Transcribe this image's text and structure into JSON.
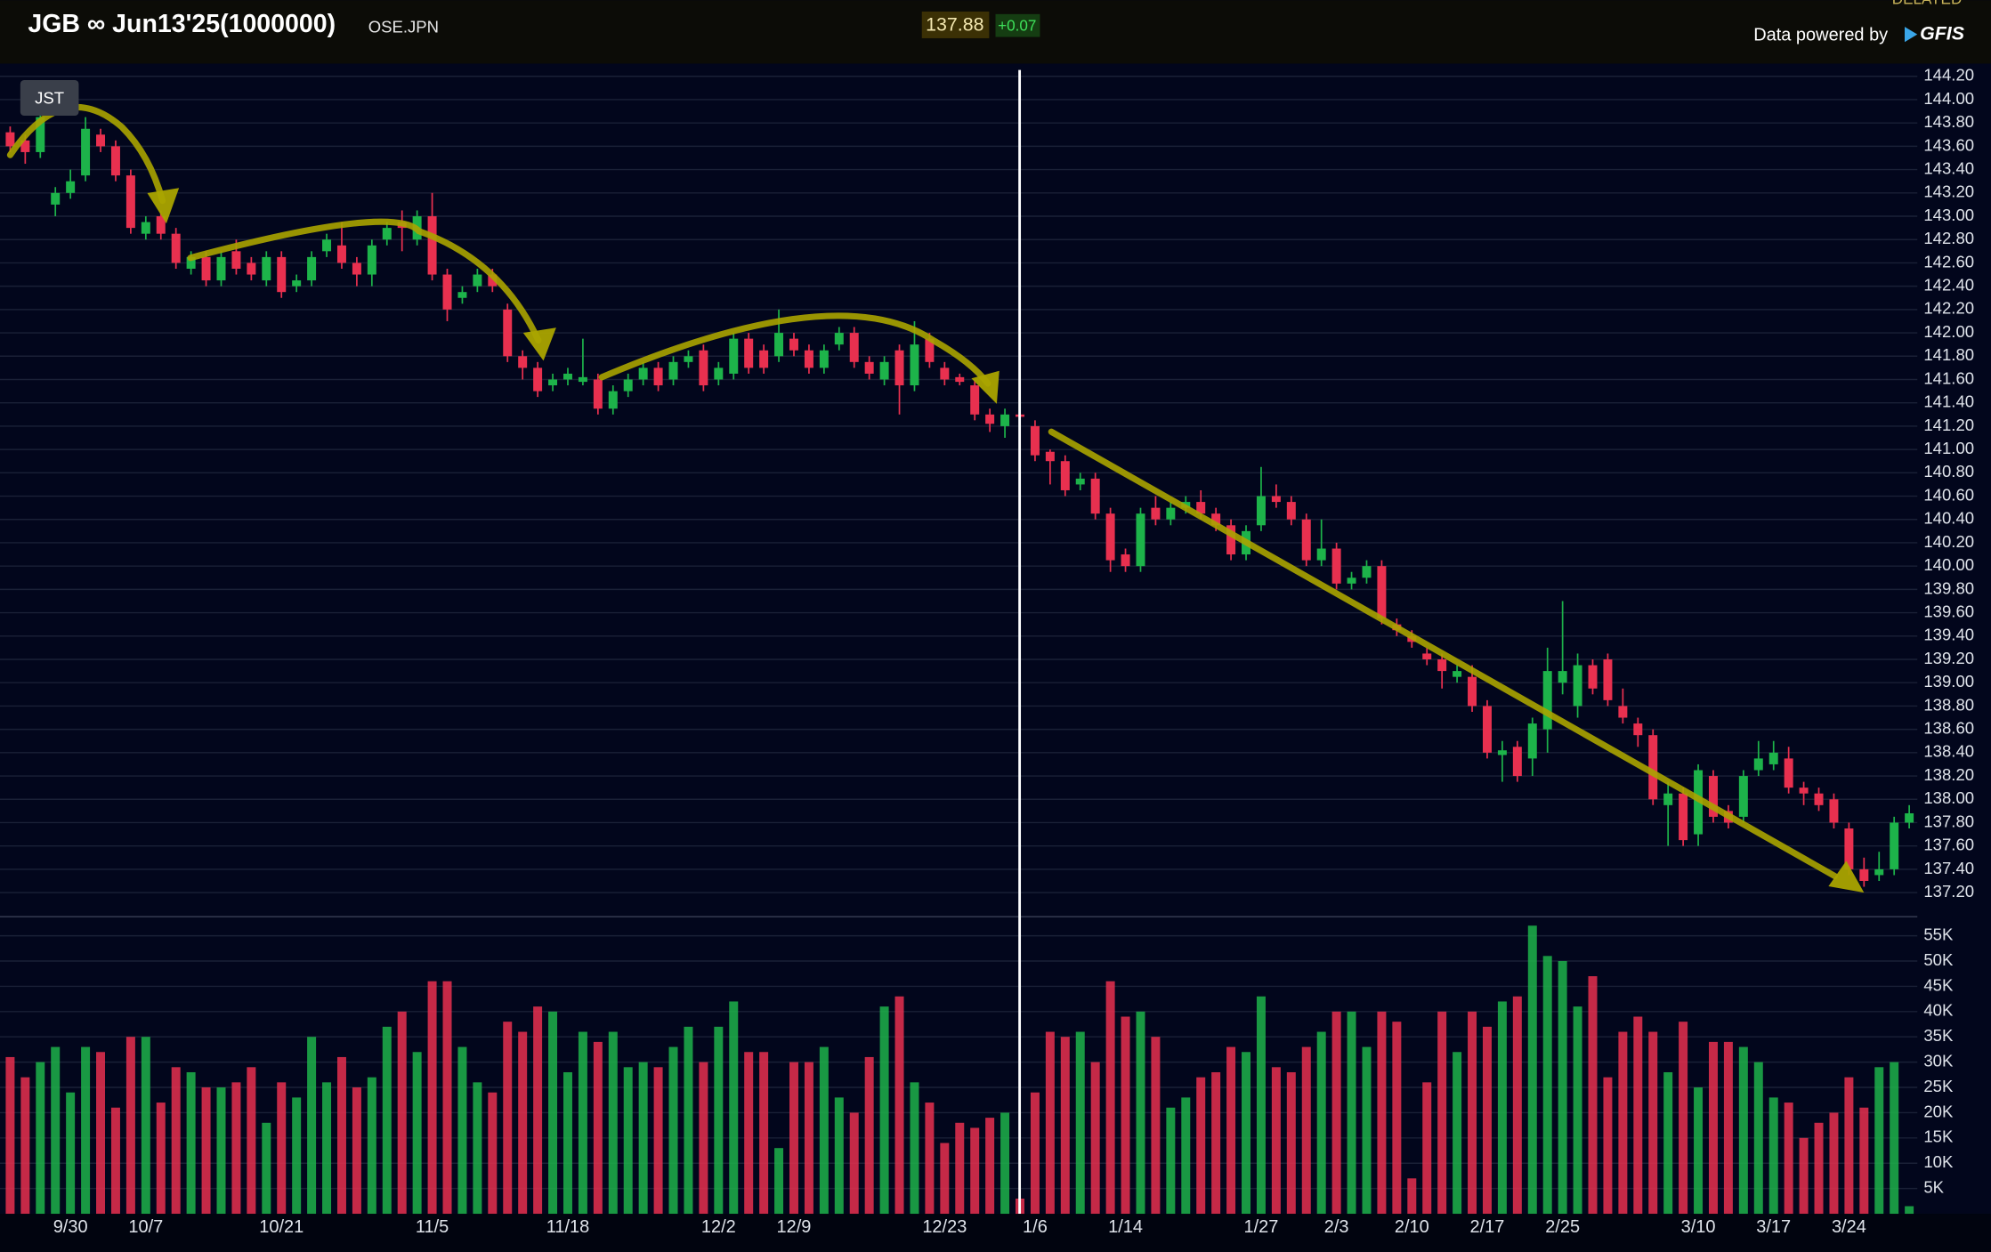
{
  "chart_data": {
    "type": "candlestick",
    "title": "JGB ∞ Jun13'25(1000000)",
    "exchange": "OSE.JPN",
    "last_price": "137.88",
    "change": "+0.07",
    "source_label": "Data powered by",
    "source_brand": "GFIS",
    "status": "DELAYED",
    "timezone": "JST",
    "up_color": "#1db34a",
    "down_color": "#e8304f",
    "grid": true,
    "categories": [
      null,
      null,
      null,
      null,
      "9/30",
      null,
      null,
      null,
      null,
      "10/7",
      null,
      null,
      null,
      null,
      null,
      null,
      null,
      null,
      "10/21",
      null,
      null,
      null,
      null,
      null,
      null,
      null,
      null,
      null,
      "11/5",
      null,
      null,
      null,
      null,
      null,
      null,
      null,
      null,
      "11/18",
      null,
      null,
      null,
      null,
      null,
      null,
      null,
      null,
      null,
      "12/2",
      null,
      null,
      null,
      null,
      "12/9",
      null,
      null,
      null,
      null,
      null,
      null,
      null,
      null,
      null,
      "12/23",
      null,
      null,
      null,
      null,
      null,
      "1/6",
      null,
      null,
      null,
      null,
      null,
      "1/14",
      null,
      null,
      null,
      null,
      null,
      null,
      null,
      null,
      "1/27",
      null,
      null,
      null,
      null,
      "2/3",
      null,
      null,
      null,
      null,
      "2/10",
      null,
      null,
      null,
      null,
      "2/17",
      null,
      null,
      null,
      null,
      "2/25",
      null,
      null,
      null,
      null,
      null,
      null,
      null,
      null,
      "3/10",
      null,
      null,
      null,
      null,
      "3/17",
      null,
      null,
      null,
      null,
      "3/24",
      null,
      null,
      null,
      null
    ],
    "open": [
      143.72,
      143.65,
      143.55,
      143.1,
      143.2,
      143.35,
      143.7,
      143.6,
      143.35,
      142.85,
      143.0,
      142.85,
      142.55,
      142.65,
      142.45,
      142.7,
      142.6,
      142.45,
      142.65,
      142.4,
      142.45,
      142.7,
      142.75,
      142.6,
      142.5,
      142.8,
      142.95,
      142.8,
      143.0,
      142.5,
      142.3,
      142.4,
      142.5,
      142.2,
      141.8,
      141.7,
      141.55,
      141.6,
      141.58,
      141.6,
      141.35,
      141.5,
      141.6,
      141.7,
      141.6,
      141.75,
      141.85,
      141.6,
      141.65,
      141.95,
      141.85,
      141.8,
      141.95,
      141.85,
      141.7,
      141.9,
      142.0,
      141.75,
      141.6,
      141.85,
      141.55,
      141.95,
      141.7,
      141.62,
      141.55,
      141.3,
      141.2,
      141.3,
      141.2,
      140.98,
      140.9,
      140.7,
      140.75,
      140.45,
      140.1,
      140.0,
      140.5,
      140.4,
      140.5,
      140.55,
      140.45,
      140.35,
      140.1,
      140.35,
      140.6,
      140.55,
      140.4,
      140.05,
      140.15,
      139.85,
      139.9,
      140.0,
      139.5,
      139.4,
      139.25,
      139.2,
      139.05,
      139.05,
      138.8,
      138.38,
      138.45,
      138.35,
      138.6,
      139.0,
      138.8,
      139.15,
      139.2,
      138.8,
      138.65,
      138.55,
      137.95,
      138.05,
      137.7,
      138.2,
      137.9,
      137.85,
      138.25,
      138.3,
      138.35,
      138.1,
      138.05,
      138.0,
      137.75,
      137.4,
      137.35,
      137.4,
      137.8
    ],
    "high": [
      143.77,
      143.7,
      143.9,
      143.25,
      143.4,
      143.85,
      143.75,
      143.65,
      143.4,
      143.0,
      143.05,
      142.9,
      142.7,
      142.7,
      142.7,
      142.8,
      142.65,
      142.7,
      142.7,
      142.5,
      142.7,
      142.85,
      142.95,
      142.65,
      142.8,
      142.95,
      143.05,
      143.05,
      143.2,
      142.55,
      142.4,
      142.55,
      142.55,
      142.25,
      141.85,
      141.75,
      141.65,
      141.7,
      141.95,
      141.65,
      141.55,
      141.65,
      141.75,
      141.75,
      141.8,
      141.85,
      141.9,
      141.75,
      142.0,
      142.0,
      141.9,
      142.2,
      142.0,
      141.9,
      141.9,
      142.05,
      142.05,
      141.8,
      141.8,
      141.9,
      142.1,
      142.0,
      141.75,
      141.65,
      141.6,
      141.35,
      141.35,
      141.32,
      141.25,
      141.0,
      140.95,
      140.8,
      140.8,
      140.5,
      140.15,
      140.5,
      140.6,
      140.55,
      140.6,
      140.65,
      140.5,
      140.4,
      140.35,
      140.85,
      140.7,
      140.6,
      140.45,
      140.4,
      140.2,
      139.95,
      140.05,
      140.05,
      139.55,
      139.45,
      139.3,
      139.25,
      139.15,
      139.15,
      138.85,
      138.5,
      138.5,
      138.7,
      139.3,
      139.7,
      139.25,
      139.2,
      139.25,
      138.95,
      138.7,
      138.6,
      138.15,
      138.1,
      138.3,
      138.25,
      137.95,
      138.25,
      138.5,
      138.5,
      138.45,
      138.15,
      138.1,
      138.05,
      137.8,
      137.5,
      137.55,
      137.85,
      137.95
    ],
    "low": [
      143.55,
      143.45,
      143.5,
      143.0,
      143.15,
      143.3,
      143.55,
      143.3,
      142.85,
      142.8,
      142.8,
      142.55,
      142.5,
      142.4,
      142.4,
      142.5,
      142.45,
      142.4,
      142.3,
      142.35,
      142.4,
      142.65,
      142.55,
      142.4,
      142.4,
      142.75,
      142.7,
      142.75,
      142.45,
      142.1,
      142.25,
      142.35,
      142.35,
      141.75,
      141.6,
      141.45,
      141.5,
      141.55,
      141.55,
      141.3,
      141.3,
      141.45,
      141.55,
      141.5,
      141.55,
      141.7,
      141.5,
      141.55,
      141.6,
      141.65,
      141.65,
      141.75,
      141.8,
      141.65,
      141.65,
      141.85,
      141.7,
      141.6,
      141.55,
      141.3,
      141.5,
      141.7,
      141.55,
      141.55,
      141.25,
      141.15,
      141.1,
      141.25,
      140.9,
      140.7,
      140.6,
      140.65,
      140.4,
      139.95,
      139.95,
      139.95,
      140.35,
      140.35,
      140.45,
      140.4,
      140.3,
      140.05,
      140.05,
      140.3,
      140.5,
      140.35,
      140.0,
      140.0,
      139.8,
      139.8,
      139.85,
      139.5,
      139.4,
      139.3,
      139.15,
      138.95,
      139.0,
      138.75,
      138.35,
      138.15,
      138.15,
      138.2,
      138.4,
      138.9,
      138.7,
      138.9,
      138.8,
      138.65,
      138.45,
      137.95,
      137.6,
      137.6,
      137.6,
      137.8,
      137.75,
      137.8,
      138.2,
      138.25,
      138.05,
      137.95,
      137.9,
      137.75,
      137.35,
      137.25,
      137.3,
      137.35,
      137.75
    ],
    "close": [
      143.6,
      143.55,
      143.85,
      143.2,
      143.3,
      143.75,
      143.6,
      143.35,
      142.9,
      142.95,
      142.85,
      142.6,
      142.65,
      142.45,
      142.65,
      142.55,
      142.5,
      142.65,
      142.35,
      142.45,
      142.65,
      142.8,
      142.6,
      142.5,
      142.75,
      142.9,
      142.9,
      143.0,
      142.5,
      142.2,
      142.35,
      142.5,
      142.4,
      141.8,
      141.7,
      141.5,
      141.6,
      141.65,
      141.62,
      141.35,
      141.5,
      141.6,
      141.7,
      141.55,
      141.75,
      141.8,
      141.55,
      141.7,
      141.95,
      141.7,
      141.7,
      142.0,
      141.85,
      141.7,
      141.85,
      142.0,
      141.75,
      141.65,
      141.75,
      141.55,
      141.9,
      141.75,
      141.6,
      141.58,
      141.3,
      141.22,
      141.3,
      141.28,
      140.95,
      140.9,
      140.65,
      140.75,
      140.45,
      140.05,
      140.0,
      140.45,
      140.4,
      140.5,
      140.55,
      140.45,
      140.35,
      140.1,
      140.3,
      140.6,
      140.55,
      140.4,
      140.05,
      140.15,
      139.85,
      139.9,
      140.0,
      139.55,
      139.45,
      139.35,
      139.2,
      139.1,
      139.1,
      138.8,
      138.4,
      138.42,
      138.2,
      138.65,
      139.1,
      139.1,
      139.15,
      138.95,
      138.85,
      138.7,
      138.55,
      138.0,
      138.05,
      137.65,
      138.25,
      137.85,
      137.8,
      138.2,
      138.35,
      138.4,
      138.1,
      138.05,
      137.95,
      137.8,
      137.4,
      137.3,
      137.4,
      137.8,
      137.88
    ],
    "volume": [
      31000,
      27000,
      30000,
      33000,
      24000,
      33000,
      32000,
      21000,
      35000,
      35000,
      22000,
      29000,
      28000,
      25000,
      25000,
      26000,
      29000,
      18000,
      26000,
      23000,
      35000,
      26000,
      31000,
      25000,
      27000,
      37000,
      40000,
      32000,
      46000,
      46000,
      33000,
      26000,
      24000,
      38000,
      36000,
      41000,
      40000,
      28000,
      36000,
      34000,
      36000,
      29000,
      30000,
      29000,
      33000,
      37000,
      30000,
      37000,
      42000,
      32000,
      32000,
      13000,
      30000,
      30000,
      33000,
      23000,
      20000,
      31000,
      41000,
      43000,
      26000,
      22000,
      14000,
      18000,
      17000,
      19000,
      20000,
      3000,
      24000,
      36000,
      35000,
      36000,
      30000,
      46000,
      39000,
      40000,
      35000,
      21000,
      23000,
      27000,
      28000,
      33000,
      32000,
      43000,
      29000,
      28000,
      33000,
      36000,
      40000,
      40000,
      33000,
      40000,
      38000,
      7000,
      26000,
      40000,
      32000,
      40000,
      37000,
      42000,
      43000,
      57000,
      51000,
      50000,
      41000,
      47000,
      27000,
      36000,
      39000,
      36000,
      28000,
      38000,
      25000,
      34000,
      34000,
      33000,
      30000,
      23000,
      22000,
      15000,
      18000,
      20000,
      27000,
      21000,
      29000,
      30000,
      1500
    ],
    "ylim": [
      137.1,
      144.3
    ],
    "yticks": [
      {
        "value": 137.2,
        "label": "137.20"
      },
      {
        "value": 137.4,
        "label": "137.40"
      },
      {
        "value": 137.6,
        "label": "137.60"
      },
      {
        "value": 137.8,
        "label": "137.80"
      },
      {
        "value": 138,
        "label": "138.00"
      },
      {
        "value": 138.2,
        "label": "138.20"
      },
      {
        "value": 138.4,
        "label": "138.40"
      },
      {
        "value": 138.6,
        "label": "138.60"
      },
      {
        "value": 138.8,
        "label": "138.80"
      },
      {
        "value": 139,
        "label": "139.00"
      },
      {
        "value": 139.2,
        "label": "139.20"
      },
      {
        "value": 139.4,
        "label": "139.40"
      },
      {
        "value": 139.6,
        "label": "139.60"
      },
      {
        "value": 139.8,
        "label": "139.80"
      },
      {
        "value": 140,
        "label": "140.00"
      },
      {
        "value": 140.2,
        "label": "140.20"
      },
      {
        "value": 140.4,
        "label": "140.40"
      },
      {
        "value": 140.6,
        "label": "140.60"
      },
      {
        "value": 140.8,
        "label": "140.80"
      },
      {
        "value": 141,
        "label": "141.00"
      },
      {
        "value": 141.2,
        "label": "141.20"
      },
      {
        "value": 141.4,
        "label": "141.40"
      },
      {
        "value": 141.6,
        "label": "141.60"
      },
      {
        "value": 141.8,
        "label": "141.80"
      },
      {
        "value": 142,
        "label": "142.00"
      },
      {
        "value": 142.2,
        "label": "142.20"
      },
      {
        "value": 142.4,
        "label": "142.40"
      },
      {
        "value": 142.6,
        "label": "142.60"
      },
      {
        "value": 142.8,
        "label": "142.80"
      },
      {
        "value": 143,
        "label": "143.00"
      },
      {
        "value": 143.2,
        "label": "143.20"
      },
      {
        "value": 143.4,
        "label": "143.40"
      },
      {
        "value": 143.6,
        "label": "143.60"
      },
      {
        "value": 143.8,
        "label": "143.80"
      },
      {
        "value": 144,
        "label": "144.00"
      },
      {
        "value": 144.2,
        "label": "144.20"
      }
    ],
    "y2lim": [
      0,
      60000
    ],
    "y2ticks": [
      {
        "value": 5000,
        "label": "5K"
      },
      {
        "value": 10000,
        "label": "10K"
      },
      {
        "value": 15000,
        "label": "15K"
      },
      {
        "value": 20000,
        "label": "20K"
      },
      {
        "value": 25000,
        "label": "25K"
      },
      {
        "value": 30000,
        "label": "30K"
      },
      {
        "value": 35000,
        "label": "35K"
      },
      {
        "value": 40000,
        "label": "40K"
      },
      {
        "value": 45000,
        "label": "45K"
      },
      {
        "value": 50000,
        "label": "50K"
      },
      {
        "value": 55000,
        "label": "55K"
      }
    ]
  }
}
